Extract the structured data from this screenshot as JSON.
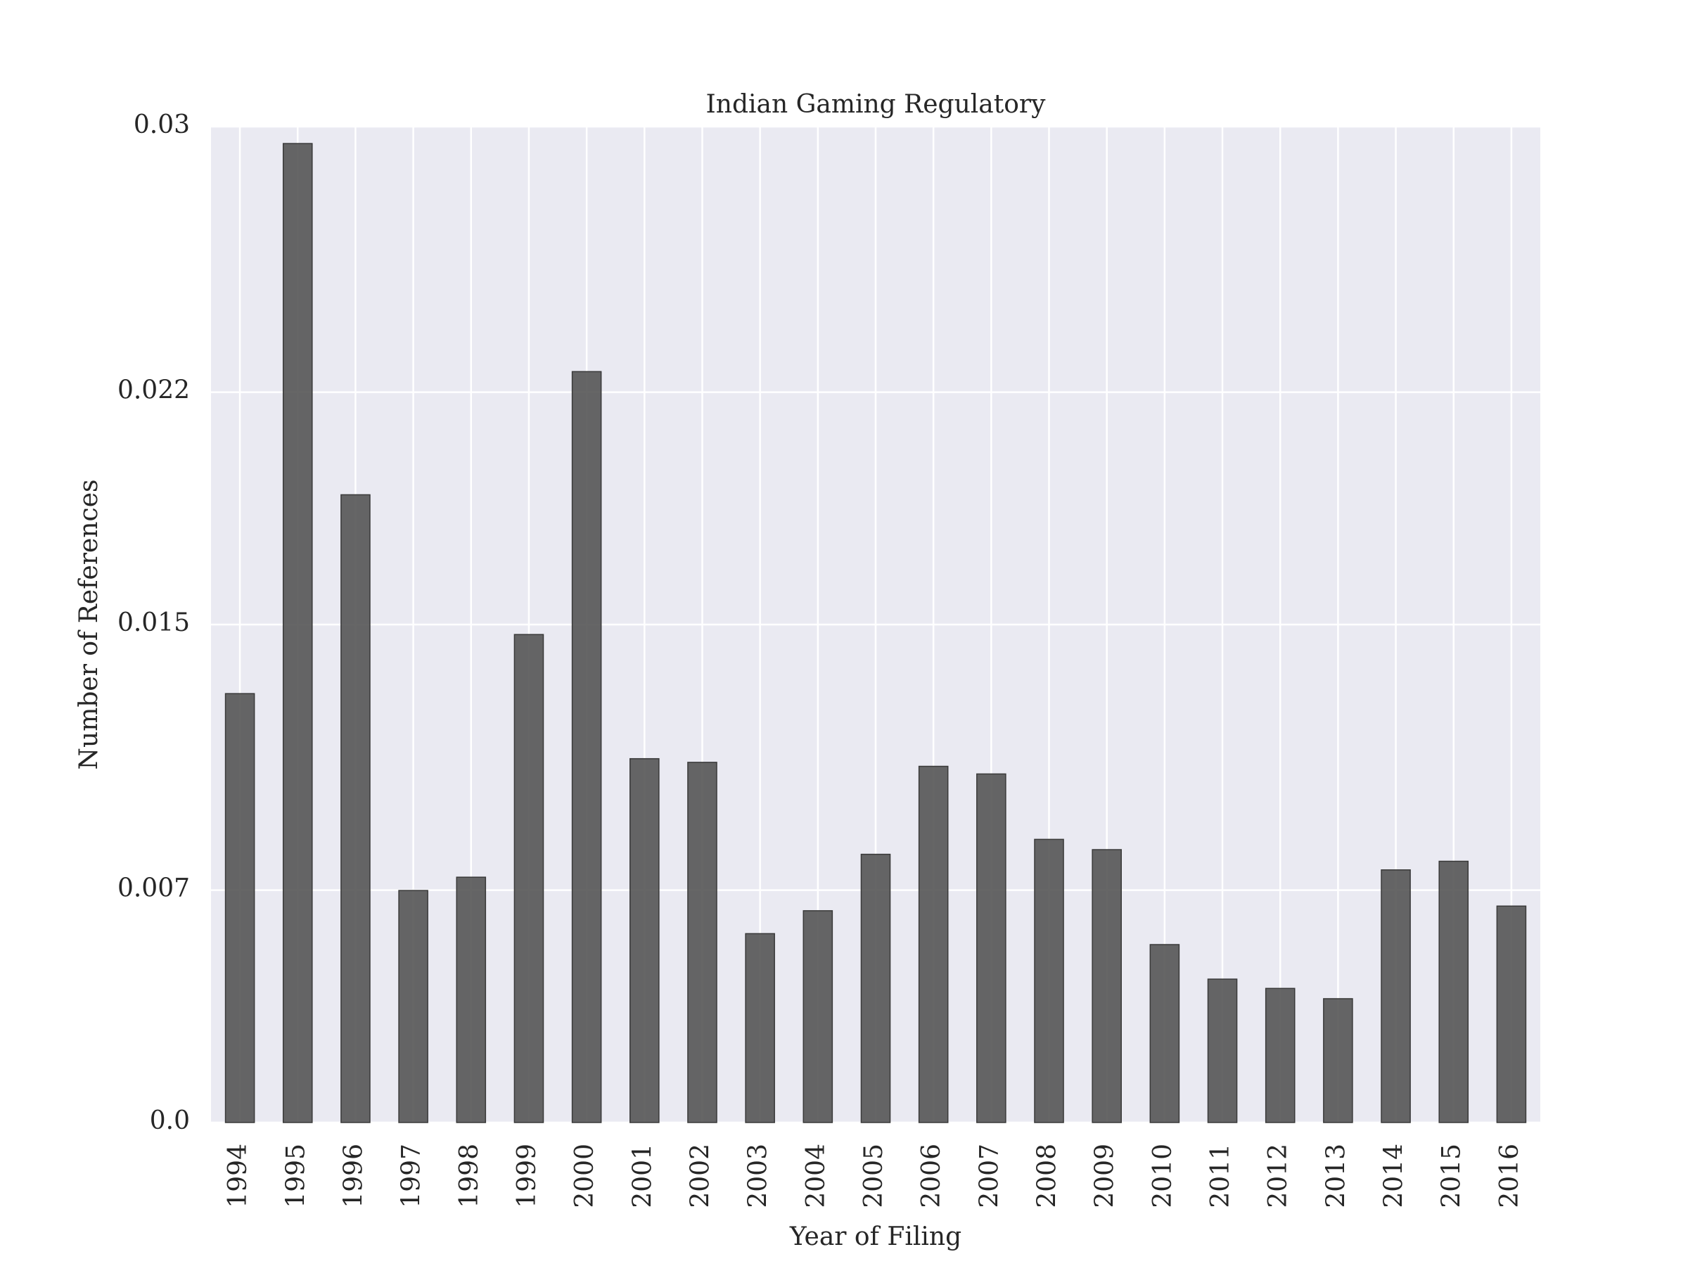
{
  "chart_data": {
    "type": "bar",
    "title": "Indian Gaming Regulatory",
    "xlabel": "Year of Filing",
    "ylabel": "Number of References",
    "categories": [
      "1994",
      "1995",
      "1996",
      "1997",
      "1998",
      "1999",
      "2000",
      "2001",
      "2002",
      "2003",
      "2004",
      "2005",
      "2006",
      "2007",
      "2008",
      "2009",
      "2010",
      "2011",
      "2012",
      "2013",
      "2014",
      "2015",
      "2016"
    ],
    "values": [
      0.01292,
      0.02949,
      0.01891,
      0.00699,
      0.00739,
      0.0147,
      0.02262,
      0.01096,
      0.01085,
      0.00569,
      0.00638,
      0.00808,
      0.01073,
      0.0105,
      0.00853,
      0.00822,
      0.00536,
      0.00432,
      0.00404,
      0.00373,
      0.00761,
      0.00787,
      0.00652
    ],
    "ylim": [
      0,
      0.03
    ],
    "yticks": [
      0.0,
      0.007,
      0.015,
      0.022,
      0.03
    ],
    "ytick_labels": [
      "0.0",
      "0.007",
      "0.015",
      "0.022",
      "0.03"
    ],
    "grid": true,
    "colors": {
      "bar": "#555555",
      "bar_edge": "#3a3a3a",
      "plot_background": "#eaeaf2",
      "grid": "#ffffff",
      "text": "#262626"
    }
  }
}
